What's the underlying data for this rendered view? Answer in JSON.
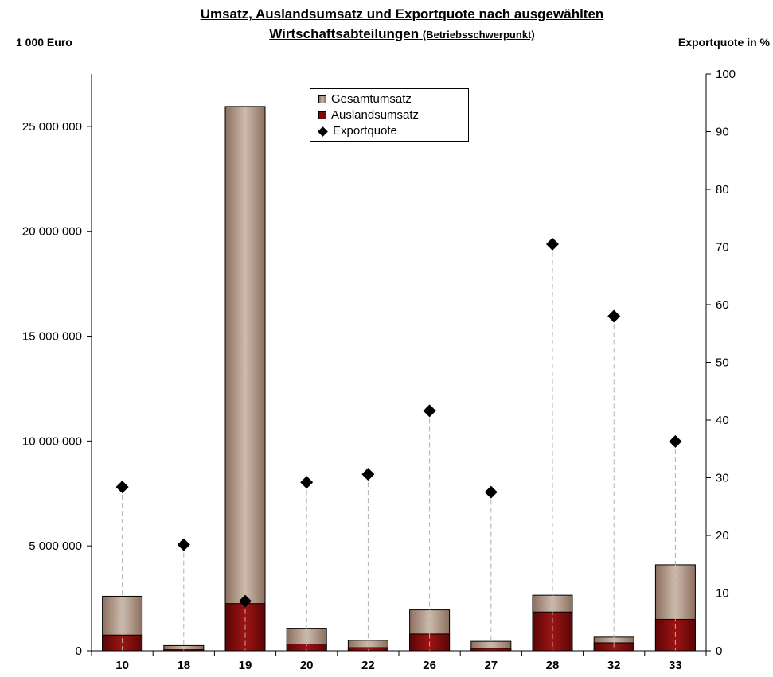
{
  "title": {
    "line1": "Umsatz, Auslandsumsatz und Exportquote nach ausgewählten",
    "line2_main": "Wirtschaftsabteilungen",
    "line2_sub": "(Betriebsschwerpunkt)"
  },
  "axis_captions": {
    "left": "1 000 Euro",
    "right": "Exportquote in %"
  },
  "legend": {
    "total": "Gesamtumsatz",
    "export": "Auslandsumsatz",
    "quota": "Exportquote"
  },
  "chart_data": {
    "type": "bar",
    "categories": [
      "10",
      "18",
      "19",
      "20",
      "22",
      "26",
      "27",
      "28",
      "32",
      "33"
    ],
    "series": [
      {
        "name": "Gesamtumsatz",
        "values": [
          2600000,
          250000,
          25950000,
          1050000,
          500000,
          1950000,
          450000,
          2650000,
          650000,
          4100000
        ]
      },
      {
        "name": "Auslandsumsatz",
        "values": [
          750000,
          50000,
          2250000,
          320000,
          150000,
          800000,
          120000,
          1850000,
          380000,
          1500000
        ]
      },
      {
        "name": "Exportquote",
        "values": [
          28.4,
          18.4,
          8.6,
          29.2,
          30.6,
          41.6,
          27.5,
          70.5,
          58.0,
          36.3
        ]
      }
    ],
    "ylim_left": [
      0,
      27500000
    ],
    "ylim_right": [
      0,
      100
    ],
    "yticks_left": [
      0,
      5000000,
      10000000,
      15000000,
      20000000,
      25000000
    ],
    "ytick_labels_left": [
      "0",
      "5 000 000",
      "10 000 000",
      "15 000 000",
      "20 000 000",
      "25 000 000"
    ],
    "yticks_right": [
      0,
      10,
      20,
      30,
      40,
      50,
      60,
      70,
      80,
      90,
      100
    ],
    "ytick_labels_right": [
      "0",
      "10",
      "20",
      "30",
      "40",
      "50",
      "60",
      "70",
      "80",
      "90",
      "100"
    ],
    "colors": {
      "total": "#b59d8d",
      "total_dark": "#8c6f5e",
      "export": "#8b0f0f",
      "export_dark": "#5c0505",
      "quota": "#000000",
      "dropline": "#b0b0b0"
    },
    "legend_position": "top-center",
    "grid": false
  }
}
